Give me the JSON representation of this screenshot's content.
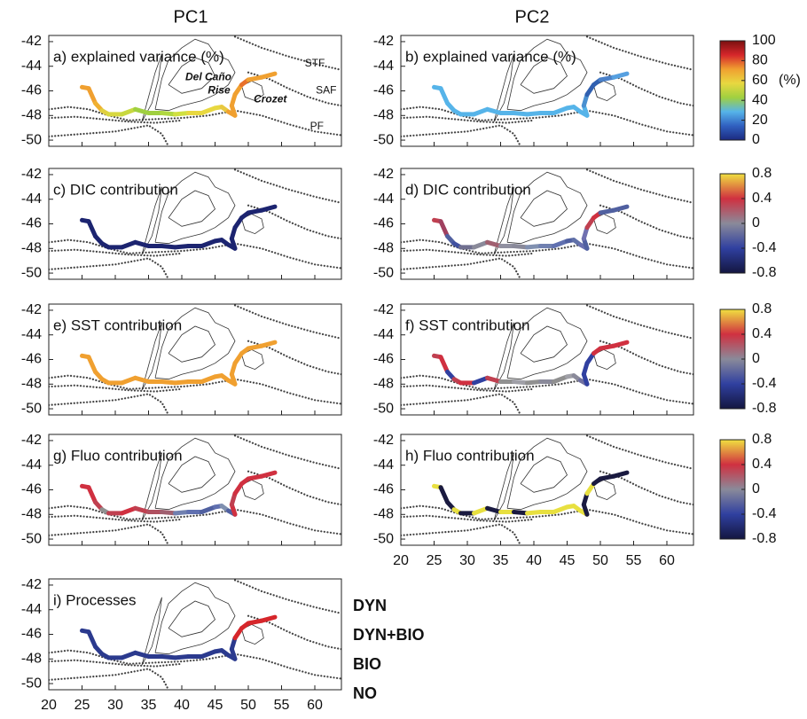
{
  "column_titles": [
    "PC1",
    "PC2"
  ],
  "axes": {
    "xlim": [
      20,
      64
    ],
    "ylim": [
      -50.5,
      -41.5
    ],
    "xticks": [
      20,
      25,
      30,
      35,
      40,
      45,
      50,
      55,
      60
    ],
    "yticks": [
      -42,
      -44,
      -46,
      -48,
      -50
    ]
  },
  "panels": [
    {
      "label": "a) explained variance (%)",
      "annotations": [
        "STF",
        "SAF",
        "PF",
        "Del Caño",
        "Rise",
        "Crozet"
      ],
      "track_colors": [
        "#f0a030",
        "#f0a030",
        "#f0b030",
        "#e0d040",
        "#d8d840",
        "#c8d840",
        "#a0d040",
        "#a0d040",
        "#b0d840",
        "#d0e040",
        "#e8d840",
        "#e8d840",
        "#e8d840",
        "#e8c840",
        "#f0a030",
        "#f0a030",
        "#f0a030",
        "#f0a030",
        "#e8702a",
        "#f0a030",
        "#f0a030"
      ]
    },
    {
      "label": "b) explained variance (%)",
      "track_colors": [
        "#56b4e9",
        "#56b4e9",
        "#56b4e9",
        "#56b4e9",
        "#56b4e9",
        "#56b4e9",
        "#56b4e9",
        "#56b4e9",
        "#56b4e9",
        "#56b4e9",
        "#56b4e9",
        "#56b4e9",
        "#56b4e9",
        "#56b4e9",
        "#56b4e9",
        "#56b4e9",
        "#4a90d0",
        "#3060b0",
        "#3060b0",
        "#4a80c8",
        "#56a0e0"
      ]
    },
    {
      "label": "c) DIC contribution",
      "track_colors": [
        "#1c2470",
        "#1c2470",
        "#1c2470",
        "#1c2470",
        "#1c2470",
        "#1c2470",
        "#1c2470",
        "#1c2470",
        "#1c2470",
        "#1c2470",
        "#1c2470",
        "#1c2470",
        "#1c2470",
        "#1c2470",
        "#1c2470",
        "#1c2470",
        "#1c2470",
        "#1c2470",
        "#1c2470",
        "#1c2470",
        "#1c2470"
      ]
    },
    {
      "label": "d) DIC contribution",
      "track_colors": [
        "#c04050",
        "#a04060",
        "#5060a0",
        "#4050a0",
        "#707090",
        "#8a8a9a",
        "#a06070",
        "#9090a0",
        "#8a8a9a",
        "#8090b0",
        "#7080b0",
        "#6070b0",
        "#5060a0",
        "#6070a8",
        "#6a70b0",
        "#5060a0",
        "#7070b0",
        "#c04050",
        "#d03040",
        "#5060a0",
        "#5060a0"
      ]
    },
    {
      "label": "e) SST contribution",
      "track_colors": [
        "#f0a030",
        "#f0a030",
        "#f0a030",
        "#f0a030",
        "#f0a030",
        "#f0a030",
        "#f0a030",
        "#f0a030",
        "#f0a030",
        "#f0a030",
        "#f0a030",
        "#f0a030",
        "#f0a030",
        "#f0a030",
        "#f0a030",
        "#f0a030",
        "#f0a030",
        "#f0a030",
        "#f0a030",
        "#f0a030",
        "#f0a030"
      ]
    },
    {
      "label": "f) SST contribution",
      "track_colors": [
        "#c04050",
        "#d03040",
        "#3040a0",
        "#c04050",
        "#d03040",
        "#3040a0",
        "#c04050",
        "#909090",
        "#a0a0a8",
        "#909090",
        "#8a8a9a",
        "#909090",
        "#a0a0a8",
        "#8a8a9a",
        "#7070a0",
        "#3040a0",
        "#3040a0",
        "#3040a0",
        "#d03040",
        "#d03040",
        "#d03040"
      ]
    },
    {
      "label": "g) Fluo contribution",
      "track_colors": [
        "#d03040",
        "#d03040",
        "#c04050",
        "#909090",
        "#c04050",
        "#d03040",
        "#c04050",
        "#b05060",
        "#a06070",
        "#7080b0",
        "#6070b0",
        "#5060a0",
        "#6070b0",
        "#8090b0",
        "#5060a0",
        "#d03040",
        "#c04050",
        "#d03040",
        "#d03040",
        "#d03040",
        "#d03040"
      ]
    },
    {
      "label": "h) Fluo contribution",
      "track_colors": [
        "#e8e040",
        "#1a1a40",
        "#1a1a40",
        "#e8e040",
        "#1a1a40",
        "#e8e040",
        "#1a1a40",
        "#e8e040",
        "#1a1a40",
        "#e8e040",
        "#e8e040",
        "#e8e040",
        "#e8e040",
        "#e8e040",
        "#e8e040",
        "#1a1a40",
        "#1a1a40",
        "#e8e040",
        "#1a1a40",
        "#1a1a40",
        "#1a1a40"
      ]
    },
    {
      "label": "i) Processes",
      "track_colors": [
        "#2b3a8e",
        "#2b3a8e",
        "#2b3a8e",
        "#2b3a8e",
        "#2b3a8e",
        "#2b3a8e",
        "#2b3a8e",
        "#2b3a8e",
        "#2b3a8e",
        "#2b3a8e",
        "#2b3a8e",
        "#2b3a8e",
        "#2b3a8e",
        "#2b3a8e",
        "#2b3a8e",
        "#2b3a8e",
        "#2b3a8e",
        "#d6262b",
        "#d6262b",
        "#d6262b",
        "#d6262b"
      ]
    }
  ],
  "colorbars": [
    {
      "lim": [
        0,
        100
      ],
      "ticks": [
        100,
        80,
        60,
        40,
        20,
        0
      ],
      "unit": "(%)",
      "colors": [
        "#1c2a80",
        "#3060c0",
        "#56b4e9",
        "#a0d040",
        "#e8d840",
        "#f0a030",
        "#d6262b",
        "#7a1010"
      ]
    },
    {
      "lim": [
        -0.8,
        0.8
      ],
      "ticks": [
        0.8,
        0.4,
        0,
        -0.4,
        -0.8
      ],
      "colors": [
        "#141640",
        "#3040a0",
        "#8a8a9a",
        "#d03040",
        "#f0e040"
      ]
    },
    {
      "lim": [
        -0.8,
        0.8
      ],
      "ticks": [
        0.8,
        0.4,
        0,
        -0.4,
        -0.8
      ],
      "colors": [
        "#141640",
        "#3040a0",
        "#8a8a9a",
        "#d03040",
        "#f0e040"
      ]
    },
    {
      "lim": [
        -0.8,
        0.8
      ],
      "ticks": [
        0.8,
        0.4,
        0,
        -0.4,
        -0.8
      ],
      "colors": [
        "#141640",
        "#3040a0",
        "#8a8a9a",
        "#d03040",
        "#f0e040"
      ]
    }
  ],
  "legend": [
    {
      "name": "DYN",
      "color": "#2b3a8e"
    },
    {
      "name": "DYN+BIO",
      "color": "#d6262b"
    },
    {
      "name": "BIO",
      "color": "#6ab04c"
    },
    {
      "name": "NO",
      "color": "#f0a030"
    }
  ]
}
